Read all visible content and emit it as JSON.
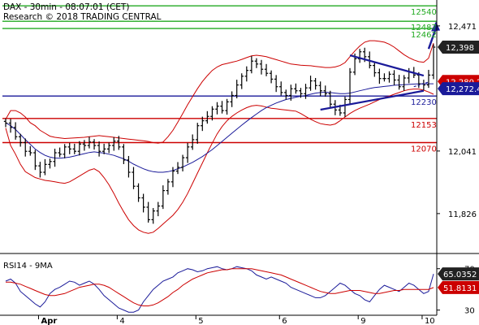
{
  "header": {
    "line1": "DAX - 30min - 08:07:01 (CET)",
    "line2": "Research © 2018 TRADING CENTRAL"
  },
  "colors": {
    "price_bar": "#000000",
    "bollinger": "#cc0000",
    "moving_average": "#1a1a99",
    "resistance_level": "#22aa22",
    "pivot_level": "#1a1a99",
    "support_level": "#cc0000",
    "trend_arrow": "#1a1a99",
    "rsi_line": "#1a1a99",
    "rsi_signal": "#cc0000"
  },
  "chart_data": [
    {
      "type": "line",
      "subtype": "ohlc-with-bollinger-bands",
      "symbol": "DAX",
      "timeframe": "30min",
      "x_ticks": [
        "Apr",
        "4",
        "5",
        "6",
        "9",
        "10"
      ],
      "y_ticks": [
        "12,471",
        "12,041",
        "11,826"
      ],
      "ylim": [
        11700,
        12560
      ],
      "last_price_labels": [
        {
          "label": "12,398",
          "value": 12398,
          "style": "dark"
        },
        {
          "label": "12,280.2",
          "value": 12280,
          "style": "red"
        },
        {
          "label": "12,272.4",
          "value": 12272,
          "style": "blue"
        }
      ],
      "levels": [
        {
          "label": "12540",
          "value": 12540,
          "kind": "resistance"
        },
        {
          "label": "12487",
          "value": 12487,
          "kind": "resistance"
        },
        {
          "label": "12462",
          "value": 12462,
          "kind": "resistance"
        },
        {
          "label": "12230",
          "value": 12230,
          "kind": "pivot"
        },
        {
          "label": "12153",
          "value": 12153,
          "kind": "support"
        },
        {
          "label": "12070",
          "value": 12070,
          "kind": "support"
        }
      ],
      "close": [
        12137,
        12122,
        12090,
        12070,
        12040,
        12035,
        11990,
        11968,
        11995,
        12005,
        12035,
        12030,
        12055,
        12048,
        12040,
        12065,
        12060,
        12072,
        12060,
        12040,
        12048,
        12060,
        12075,
        12055,
        12010,
        11968,
        11920,
        11880,
        11848,
        11805,
        11835,
        11852,
        11905,
        11935,
        11972,
        11985,
        12018,
        12055,
        12080,
        12128,
        12145,
        12160,
        12185,
        12195,
        12180,
        12210,
        12232,
        12268,
        12298,
        12318,
        12350,
        12340,
        12322,
        12308,
        12288,
        12262,
        12242,
        12232,
        12255,
        12248,
        12238,
        12258,
        12282,
        12266,
        12248,
        12238,
        12202,
        12182,
        12172,
        12218,
        12312,
        12358,
        12382,
        12365,
        12335,
        12310,
        12290,
        12290,
        12305,
        12285,
        12262,
        12292,
        12312,
        12302,
        12272,
        12268,
        12302,
        12398
      ],
      "moving_average": [
        12138,
        12128,
        12115,
        12098,
        12080,
        12064,
        12048,
        12036,
        12026,
        12020,
        12017,
        12016,
        12018,
        12020,
        12024,
        12028,
        12032,
        12036,
        12038,
        12036,
        12034,
        12030,
        12026,
        12020,
        12014,
        12006,
        11996,
        11988,
        11980,
        11974,
        11970,
        11968,
        11968,
        11970,
        11974,
        11980,
        11986,
        11994,
        12002,
        12012,
        12022,
        12034,
        12046,
        12060,
        12074,
        12088,
        12102,
        12116,
        12130,
        12143,
        12156,
        12168,
        12180,
        12190,
        12198,
        12206,
        12212,
        12218,
        12222,
        12226,
        12229,
        12232,
        12236,
        12240,
        12242,
        12243,
        12242,
        12240,
        12238,
        12238,
        12240,
        12244,
        12248,
        12252,
        12256,
        12259,
        12261,
        12263,
        12265,
        12267,
        12268,
        12269,
        12270,
        12271,
        12272,
        12272,
        12272,
        12272
      ],
      "bollinger_upper": [
        12150,
        12180,
        12180,
        12172,
        12158,
        12138,
        12128,
        12112,
        12102,
        12092,
        12088,
        12086,
        12084,
        12085,
        12086,
        12087,
        12088,
        12090,
        12092,
        12094,
        12092,
        12090,
        12088,
        12086,
        12084,
        12082,
        12080,
        12078,
        12076,
        12074,
        12070,
        12068,
        12072,
        12090,
        12112,
        12140,
        12170,
        12200,
        12228,
        12255,
        12280,
        12300,
        12318,
        12330,
        12338,
        12342,
        12346,
        12350,
        12356,
        12362,
        12368,
        12370,
        12368,
        12365,
        12360,
        12355,
        12350,
        12345,
        12340,
        12338,
        12336,
        12335,
        12334,
        12332,
        12330,
        12328,
        12328,
        12330,
        12335,
        12345,
        12365,
        12385,
        12402,
        12415,
        12420,
        12420,
        12418,
        12415,
        12408,
        12398,
        12385,
        12372,
        12362,
        12354,
        12348,
        12346,
        12360,
        12412
      ],
      "bollinger_lower": [
        12120,
        12060,
        12030,
        11995,
        11970,
        11960,
        11950,
        11945,
        11940,
        11938,
        11935,
        11932,
        11930,
        11935,
        11945,
        11955,
        11965,
        11975,
        11980,
        11970,
        11950,
        11925,
        11895,
        11862,
        11832,
        11805,
        11785,
        11770,
        11762,
        11758,
        11762,
        11775,
        11790,
        11805,
        11820,
        11840,
        11865,
        11895,
        11930,
        11965,
        12000,
        12035,
        12068,
        12100,
        12125,
        12145,
        12160,
        12172,
        12182,
        12190,
        12196,
        12198,
        12196,
        12192,
        12188,
        12186,
        12184,
        12182,
        12180,
        12178,
        12170,
        12160,
        12150,
        12142,
        12135,
        12132,
        12130,
        12134,
        12145,
        12158,
        12170,
        12180,
        12188,
        12195,
        12202,
        12210,
        12218,
        12225,
        12230,
        12236,
        12242,
        12248,
        12252,
        12254,
        12254,
        12250,
        12244,
        12236
      ],
      "triangle": {
        "upper_from": [
          70,
          12370
        ],
        "upper_to": [
          85,
          12300
        ],
        "lower_from": [
          64,
          12183
        ],
        "lower_to": [
          85,
          12248
        ],
        "apex_dashed_from": [
          83,
          12262
        ],
        "apex_dashed_to": [
          86,
          12278
        ]
      },
      "forecast_arrow": {
        "from": [
          86,
          12392
        ],
        "to": [
          87.5,
          12486
        ]
      }
    },
    {
      "type": "line",
      "title": "RSI14 - 9MA",
      "y_ticks": [
        "70",
        "30"
      ],
      "ylim": [
        25,
        80
      ],
      "value_labels": [
        {
          "label": "65.0352",
          "value": 65.0,
          "style": "dark"
        },
        {
          "label": "51.8131",
          "value": 51.8,
          "style": "red"
        }
      ],
      "rsi": [
        58,
        60,
        56,
        48,
        44,
        40,
        36,
        33,
        38,
        46,
        50,
        52,
        55,
        58,
        57,
        54,
        56,
        58,
        55,
        50,
        44,
        40,
        36,
        32,
        30,
        28,
        28,
        30,
        38,
        44,
        50,
        54,
        58,
        60,
        62,
        66,
        68,
        70,
        69,
        67,
        68,
        70,
        71,
        72,
        70,
        69,
        70,
        72,
        71,
        70,
        68,
        64,
        62,
        60,
        62,
        60,
        58,
        56,
        52,
        50,
        48,
        46,
        44,
        42,
        42,
        44,
        48,
        52,
        56,
        54,
        50,
        46,
        44,
        40,
        38,
        44,
        50,
        54,
        52,
        50,
        48,
        52,
        56,
        54,
        50,
        46,
        48,
        65
      ],
      "rsi_ma": [
        57,
        57,
        56,
        55,
        53,
        51,
        49,
        47,
        45,
        44,
        44,
        45,
        46,
        48,
        50,
        52,
        53,
        54,
        55,
        55,
        54,
        52,
        49,
        46,
        43,
        40,
        37,
        35,
        34,
        34,
        35,
        37,
        40,
        43,
        47,
        50,
        54,
        57,
        60,
        62,
        64,
        66,
        67,
        68,
        69,
        69,
        70,
        70,
        70,
        70,
        70,
        69,
        68,
        67,
        66,
        65,
        64,
        62,
        60,
        58,
        56,
        54,
        52,
        50,
        48,
        47,
        46,
        46,
        47,
        48,
        49,
        49,
        49,
        48,
        47,
        46,
        46,
        47,
        48,
        49,
        49,
        50,
        50,
        50,
        50,
        50,
        50,
        51.8
      ]
    }
  ]
}
